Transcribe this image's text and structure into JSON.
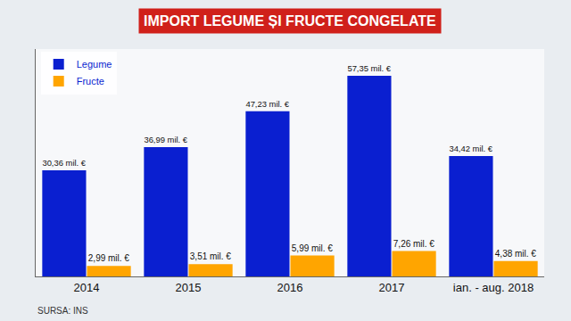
{
  "chart_data": {
    "type": "bar",
    "title": "IMPORT LEGUME ȘI FRUCTE CONGELATE",
    "source": "SURSA: INS",
    "categories": [
      "2014",
      "2015",
      "2016",
      "2017",
      "ian. - aug. 2018"
    ],
    "series": [
      {
        "name": "Legume",
        "color": "#0a1fd0",
        "values": [
          30.36,
          36.99,
          47.23,
          57.35,
          34.42
        ],
        "value_labels": [
          "30,36 mil. €",
          "36,99 mil. €",
          "47,23 mil. €",
          "57,35 mil. €",
          "34,42 mil. €"
        ]
      },
      {
        "name": "Fructe",
        "color": "#ffa500",
        "values": [
          2.99,
          3.51,
          5.99,
          7.26,
          4.38
        ],
        "value_labels": [
          "2,99 mil. €",
          "3,51 mil. €",
          "5,99 mil. €",
          "7,26 mil. €",
          "4,38 mil. €"
        ]
      }
    ],
    "ylim": [
      0,
      65
    ],
    "grid": false,
    "legend": "top-left",
    "data_labels": true,
    "tick_labels": "x"
  }
}
